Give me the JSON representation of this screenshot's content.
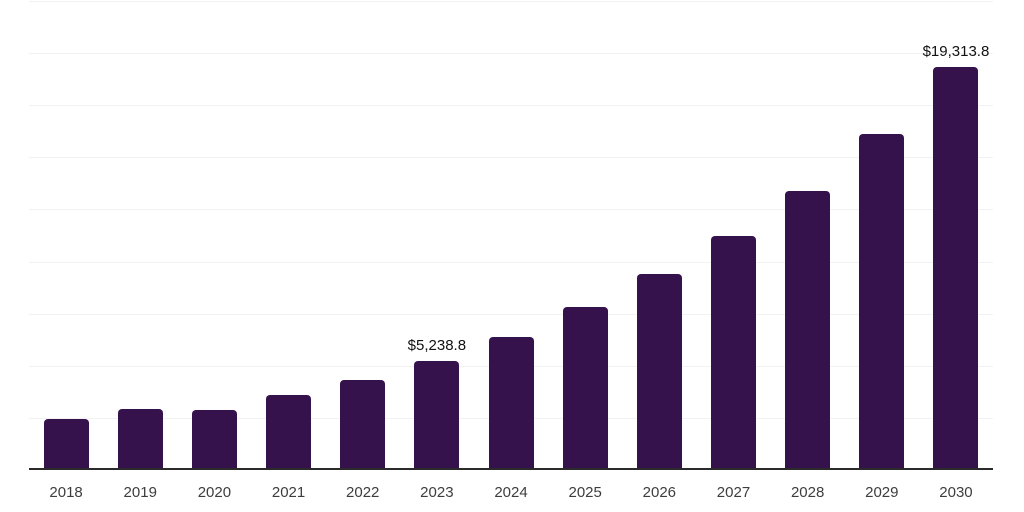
{
  "chart_data": {
    "type": "bar",
    "title": "",
    "xlabel": "",
    "ylabel": "",
    "categories": [
      "2018",
      "2019",
      "2020",
      "2021",
      "2022",
      "2023",
      "2024",
      "2025",
      "2026",
      "2027",
      "2028",
      "2029",
      "2030"
    ],
    "values": [
      2450,
      2930,
      2900,
      3600,
      4295,
      5238.8,
      6380,
      7820,
      9400,
      11230,
      13390,
      16120,
      19313.8
    ],
    "data_labels": {
      "2023": "$5,238.8",
      "2030": "$19,313.8"
    },
    "ylim": [
      0,
      22550
    ],
    "gridline_step": 2500,
    "grid": "horizontal-only, no y-axis tick labels",
    "legend": "none",
    "colors": {
      "bar": "#35124B",
      "axis_line": "#2B2B2B",
      "gridline": "#F2F2F2",
      "tick_label": "#3D3D3D",
      "data_label": "#111111",
      "background": "#FFFFFF"
    }
  }
}
